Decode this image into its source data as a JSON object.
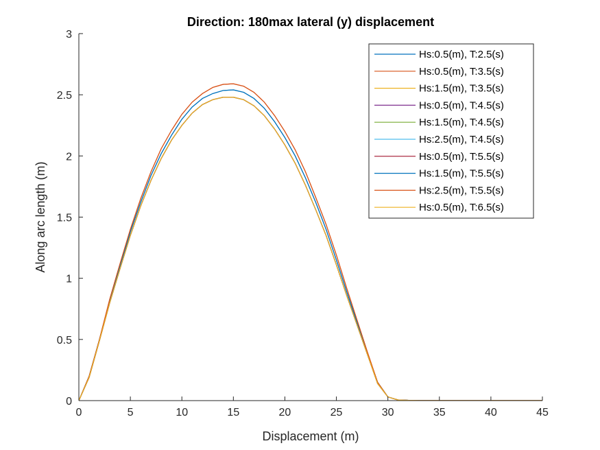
{
  "chart_data": {
    "type": "line",
    "title": "Direction: 180max lateral (y) displacement",
    "xlabel": "Displacement (m)",
    "ylabel": "Along arc length (m)",
    "xlim": [
      0,
      45
    ],
    "ylim": [
      0,
      3
    ],
    "xticks": [
      0,
      5,
      10,
      15,
      20,
      25,
      30,
      35,
      40,
      45
    ],
    "yticks": [
      0,
      0.5,
      1,
      1.5,
      2,
      2.5,
      3
    ],
    "xtick_labels": [
      "0",
      "5",
      "10",
      "15",
      "20",
      "25",
      "30",
      "35",
      "40",
      "45"
    ],
    "ytick_labels": [
      "0",
      "0.5",
      "1",
      "1.5",
      "2",
      "2.5",
      "3"
    ],
    "grid": false,
    "legend_position": "top-right",
    "x": [
      0,
      1,
      2,
      3,
      4,
      5,
      6,
      7,
      8,
      9,
      10,
      11,
      12,
      13,
      14,
      15,
      16,
      17,
      18,
      19,
      20,
      21,
      22,
      23,
      24,
      25,
      26,
      27,
      28,
      29,
      30,
      31,
      32,
      33,
      34,
      35,
      36,
      37,
      38,
      39,
      40,
      41,
      42,
      43,
      44,
      45
    ],
    "series": [
      {
        "name": "Hs:0.5(m), T:2.5(s)",
        "color": "#0072BD",
        "values": [
          0,
          0.2,
          0.5,
          0.82,
          1.1,
          1.38,
          1.62,
          1.84,
          2.02,
          2.17,
          2.3,
          2.4,
          2.47,
          2.51,
          2.535,
          2.54,
          2.52,
          2.47,
          2.39,
          2.28,
          2.15,
          2.0,
          1.82,
          1.62,
          1.4,
          1.15,
          0.89,
          0.64,
          0.39,
          0.15,
          0.03,
          0.005,
          0.002,
          0.001,
          0.001,
          0.001,
          0.001,
          0.001,
          0.001,
          0.001,
          0.001,
          0.001,
          0.001,
          0.001,
          0.001,
          0.001
        ]
      },
      {
        "name": "Hs:0.5(m), T:3.5(s)",
        "color": "#D95319",
        "values": [
          0,
          0.2,
          0.5,
          0.83,
          1.12,
          1.4,
          1.65,
          1.87,
          2.06,
          2.21,
          2.34,
          2.44,
          2.51,
          2.56,
          2.585,
          2.59,
          2.57,
          2.52,
          2.44,
          2.33,
          2.2,
          2.05,
          1.87,
          1.66,
          1.44,
          1.19,
          0.92,
          0.66,
          0.4,
          0.15,
          0.03,
          0.005,
          0.002,
          0.001,
          0.001,
          0.001,
          0.001,
          0.001,
          0.001,
          0.001,
          0.001,
          0.001,
          0.001,
          0.001,
          0.001,
          0.001
        ]
      },
      {
        "name": "Hs:1.5(m), T:3.5(s)",
        "color": "#EDB120",
        "values": [
          0,
          0.19,
          0.49,
          0.8,
          1.08,
          1.35,
          1.59,
          1.8,
          1.98,
          2.13,
          2.25,
          2.35,
          2.42,
          2.46,
          2.48,
          2.48,
          2.46,
          2.41,
          2.33,
          2.22,
          2.09,
          1.94,
          1.76,
          1.56,
          1.35,
          1.11,
          0.86,
          0.62,
          0.38,
          0.14,
          0.03,
          0.005,
          0.002,
          0.001,
          0.001,
          0.001,
          0.001,
          0.001,
          0.001,
          0.001,
          0.001,
          0.001,
          0.001,
          0.001,
          0.001,
          0.001
        ]
      },
      {
        "name": "Hs:0.5(m), T:4.5(s)",
        "color": "#7E2F8E",
        "values": [
          0,
          0.19,
          0.49,
          0.8,
          1.08,
          1.35,
          1.59,
          1.8,
          1.98,
          2.13,
          2.25,
          2.35,
          2.42,
          2.46,
          2.48,
          2.48,
          2.46,
          2.41,
          2.33,
          2.22,
          2.09,
          1.94,
          1.76,
          1.56,
          1.35,
          1.11,
          0.86,
          0.62,
          0.38,
          0.14,
          0.03,
          0.005,
          0.002,
          0.001,
          0.001,
          0.001,
          0.001,
          0.001,
          0.001,
          0.001,
          0.001,
          0.001,
          0.001,
          0.001,
          0.001,
          0.001
        ]
      },
      {
        "name": "Hs:1.5(m), T:4.5(s)",
        "color": "#77AC30",
        "values": [
          0,
          0.19,
          0.49,
          0.8,
          1.08,
          1.35,
          1.59,
          1.8,
          1.98,
          2.13,
          2.25,
          2.35,
          2.42,
          2.46,
          2.48,
          2.48,
          2.46,
          2.41,
          2.33,
          2.22,
          2.09,
          1.94,
          1.76,
          1.56,
          1.35,
          1.11,
          0.86,
          0.62,
          0.38,
          0.14,
          0.03,
          0.005,
          0.002,
          0.001,
          0.001,
          0.001,
          0.001,
          0.001,
          0.001,
          0.001,
          0.001,
          0.001,
          0.001,
          0.001,
          0.001,
          0.001
        ]
      },
      {
        "name": "Hs:2.5(m), T:4.5(s)",
        "color": "#4DBEEE",
        "values": [
          0,
          0.19,
          0.49,
          0.8,
          1.08,
          1.35,
          1.59,
          1.8,
          1.98,
          2.13,
          2.25,
          2.35,
          2.42,
          2.46,
          2.48,
          2.48,
          2.46,
          2.41,
          2.33,
          2.22,
          2.09,
          1.94,
          1.76,
          1.56,
          1.35,
          1.11,
          0.86,
          0.62,
          0.38,
          0.14,
          0.03,
          0.005,
          0.002,
          0.001,
          0.001,
          0.001,
          0.001,
          0.001,
          0.001,
          0.001,
          0.001,
          0.001,
          0.001,
          0.001,
          0.001,
          0.001
        ]
      },
      {
        "name": "Hs:0.5(m), T:5.5(s)",
        "color": "#A2142F",
        "values": [
          0,
          0.19,
          0.49,
          0.8,
          1.08,
          1.35,
          1.59,
          1.8,
          1.98,
          2.13,
          2.25,
          2.35,
          2.42,
          2.46,
          2.48,
          2.48,
          2.46,
          2.41,
          2.33,
          2.22,
          2.09,
          1.94,
          1.76,
          1.56,
          1.35,
          1.11,
          0.86,
          0.62,
          0.38,
          0.14,
          0.03,
          0.005,
          0.002,
          0.001,
          0.001,
          0.001,
          0.001,
          0.001,
          0.001,
          0.001,
          0.001,
          0.001,
          0.001,
          0.001,
          0.001,
          0.001
        ]
      },
      {
        "name": "Hs:1.5(m), T:5.5(s)",
        "color": "#0072BD",
        "values": [
          0,
          0.2,
          0.5,
          0.82,
          1.1,
          1.38,
          1.62,
          1.84,
          2.02,
          2.17,
          2.3,
          2.4,
          2.47,
          2.51,
          2.535,
          2.54,
          2.52,
          2.47,
          2.39,
          2.28,
          2.15,
          2.0,
          1.82,
          1.62,
          1.4,
          1.15,
          0.89,
          0.64,
          0.39,
          0.15,
          0.03,
          0.005,
          0.002,
          0.001,
          0.001,
          0.001,
          0.001,
          0.001,
          0.001,
          0.001,
          0.001,
          0.001,
          0.001,
          0.001,
          0.001,
          0.001
        ]
      },
      {
        "name": "Hs:2.5(m), T:5.5(s)",
        "color": "#D95319",
        "values": [
          0,
          0.2,
          0.5,
          0.83,
          1.12,
          1.4,
          1.65,
          1.87,
          2.06,
          2.21,
          2.34,
          2.44,
          2.51,
          2.56,
          2.585,
          2.59,
          2.57,
          2.52,
          2.44,
          2.33,
          2.2,
          2.05,
          1.87,
          1.66,
          1.44,
          1.19,
          0.92,
          0.66,
          0.4,
          0.15,
          0.03,
          0.005,
          0.002,
          0.001,
          0.001,
          0.001,
          0.001,
          0.001,
          0.001,
          0.001,
          0.001,
          0.001,
          0.001,
          0.001,
          0.001,
          0.001
        ]
      },
      {
        "name": "Hs:0.5(m), T:6.5(s)",
        "color": "#EDB120",
        "values": [
          0,
          0.19,
          0.49,
          0.8,
          1.08,
          1.35,
          1.59,
          1.8,
          1.98,
          2.13,
          2.25,
          2.35,
          2.42,
          2.46,
          2.48,
          2.48,
          2.46,
          2.41,
          2.33,
          2.22,
          2.09,
          1.94,
          1.76,
          1.56,
          1.35,
          1.11,
          0.86,
          0.62,
          0.38,
          0.14,
          0.03,
          0.005,
          0.002,
          0.001,
          0.001,
          0.001,
          0.001,
          0.001,
          0.001,
          0.001,
          0.001,
          0.001,
          0.001,
          0.001,
          0.001,
          0.001
        ]
      }
    ]
  }
}
